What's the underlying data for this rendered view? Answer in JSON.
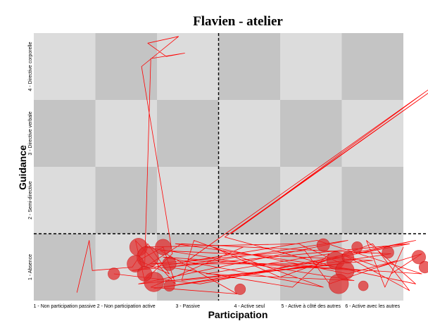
{
  "chart_data": {
    "type": "line",
    "title": "Flavien - atelier",
    "xlabel": "Participation",
    "ylabel": "Guidance",
    "x_categories": [
      "1 - Non participation passive",
      "2 - Non participation active",
      "3 - Passive",
      "4 - Active seul",
      "5 - Active à côté des autres",
      "6 - Active avec les autres"
    ],
    "y_categories": [
      "1 - Absence",
      "2 - Semi-directive",
      "3 - Directive verbale",
      "4 - Directive corporelle"
    ],
    "xlim": [
      0.5,
      6.9
    ],
    "ylim": [
      0.5,
      4.5
    ],
    "grid": "checkerboard",
    "reference_lines": {
      "x": 3.5,
      "y": 1.5
    },
    "series": [
      {
        "color": "#ff0000",
        "points": [
          [
            1.2,
            0.62
          ],
          [
            1.4,
            1.4
          ],
          [
            1.45,
            0.95
          ],
          [
            2.1,
            1.0
          ],
          [
            2.35,
            1.35
          ],
          [
            2.7,
            0.9
          ],
          [
            2.2,
            1.1
          ],
          [
            2.6,
            1.3
          ],
          [
            2.8,
            0.75
          ],
          [
            2.15,
            1.4
          ],
          [
            2.3,
            0.8
          ],
          [
            2.75,
            1.2
          ],
          [
            2.25,
            4.0
          ],
          [
            2.85,
            4.45
          ],
          [
            2.35,
            4.35
          ],
          [
            2.65,
            4.15
          ],
          [
            2.95,
            4.2
          ],
          [
            2.4,
            4.12
          ],
          [
            2.3,
            1.0
          ],
          [
            2.9,
            1.35
          ],
          [
            3.9,
            1.3
          ],
          [
            2.4,
            0.7
          ],
          [
            3.8,
            0.6
          ],
          [
            2.55,
            1.25
          ],
          [
            6.0,
            1.1
          ],
          [
            2.2,
            0.75
          ],
          [
            5.6,
            1.4
          ],
          [
            2.7,
            1.0
          ],
          [
            4.7,
            0.7
          ],
          [
            5.3,
            1.2
          ],
          [
            3.3,
            0.9
          ],
          [
            5.7,
            0.8
          ],
          [
            2.3,
            1.3
          ],
          [
            4.8,
            1.35
          ],
          [
            5.5,
            1.05
          ],
          [
            2.9,
            0.8
          ],
          [
            3.1,
            1.4
          ],
          [
            5.2,
            0.7
          ],
          [
            2.6,
            1.15
          ],
          [
            6.8,
            0.9
          ],
          [
            5.1,
            1.4
          ],
          [
            2.1,
            0.95
          ],
          [
            6.6,
            1.35
          ],
          [
            4.6,
            1.0
          ],
          [
            2.45,
            0.68
          ],
          [
            6.3,
            1.2
          ],
          [
            2.8,
            1.35
          ],
          [
            5.8,
            0.95
          ],
          [
            3.0,
            1.1
          ],
          [
            6.9,
            3.65
          ],
          [
            3.7,
            1.5
          ],
          [
            6.9,
            3.6
          ],
          [
            3.6,
            1.45
          ],
          [
            5.4,
            1.0
          ],
          [
            6.7,
            0.75
          ],
          [
            5.9,
            1.4
          ],
          [
            6.2,
            0.7
          ],
          [
            6.5,
            1.3
          ],
          [
            6.3,
            0.9
          ],
          [
            6.8,
            1.2
          ],
          [
            6.1,
            1.0
          ],
          [
            5.5,
            1.2
          ],
          [
            6.6,
            0.65
          ],
          [
            6.0,
            1.35
          ],
          [
            4.5,
            0.85
          ],
          [
            3.4,
            1.3
          ],
          [
            5.6,
            0.9
          ],
          [
            6.4,
            1.1
          ],
          [
            5.3,
            0.75
          ],
          [
            4.9,
            1.25
          ],
          [
            2.4,
            1.05
          ],
          [
            5.0,
            1.05
          ],
          [
            6.7,
            1.4
          ],
          [
            3.2,
            0.75
          ],
          [
            1.8,
            0.9
          ]
        ]
      }
    ],
    "bubbles": [
      {
        "x": 1.8,
        "y": 0.9,
        "size": 12
      },
      {
        "x": 2.2,
        "y": 1.3,
        "size": 18
      },
      {
        "x": 2.35,
        "y": 1.15,
        "size": 22
      },
      {
        "x": 2.15,
        "y": 1.05,
        "size": 17
      },
      {
        "x": 2.6,
        "y": 1.3,
        "size": 16
      },
      {
        "x": 2.7,
        "y": 1.05,
        "size": 14
      },
      {
        "x": 2.45,
        "y": 0.78,
        "size": 20
      },
      {
        "x": 2.3,
        "y": 0.9,
        "size": 15
      },
      {
        "x": 2.7,
        "y": 0.72,
        "size": 11
      },
      {
        "x": 3.85,
        "y": 0.67,
        "size": 11
      },
      {
        "x": 5.2,
        "y": 1.33,
        "size": 13
      },
      {
        "x": 5.4,
        "y": 1.1,
        "size": 18
      },
      {
        "x": 5.55,
        "y": 0.95,
        "size": 19
      },
      {
        "x": 5.45,
        "y": 0.75,
        "size": 20
      },
      {
        "x": 5.75,
        "y": 1.3,
        "size": 11
      },
      {
        "x": 5.6,
        "y": 1.15,
        "size": 12
      },
      {
        "x": 5.85,
        "y": 0.72,
        "size": 10
      },
      {
        "x": 6.25,
        "y": 1.22,
        "size": 12
      },
      {
        "x": 6.75,
        "y": 1.15,
        "size": 14
      },
      {
        "x": 6.85,
        "y": 1.0,
        "size": 12
      }
    ]
  }
}
